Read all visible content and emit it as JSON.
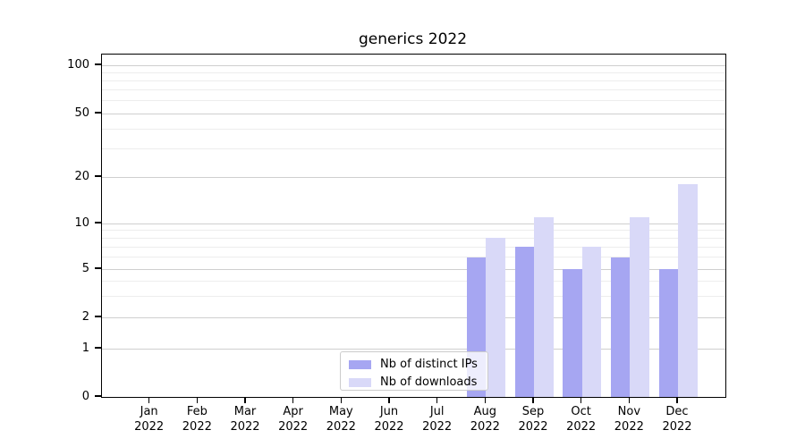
{
  "title": "generics 2022",
  "chart_data": {
    "type": "bar",
    "title": "generics 2022",
    "xlabel": "",
    "ylabel": "",
    "yscale": "symlog",
    "grid": true,
    "legend_position": "lower center inside plot",
    "ytick_labels": [
      "0",
      "1",
      "2",
      "5",
      "10",
      "20",
      "50",
      "100"
    ],
    "ytick_values": [
      0,
      1,
      2,
      5,
      10,
      20,
      50,
      100
    ],
    "y_minor_gridline_values": [
      3,
      4,
      6,
      7,
      8,
      9,
      30,
      40,
      60,
      70,
      80,
      90
    ],
    "ylim": [
      0,
      110
    ],
    "categories": [
      {
        "month": "Jan",
        "year": "2022"
      },
      {
        "month": "Feb",
        "year": "2022"
      },
      {
        "month": "Mar",
        "year": "2022"
      },
      {
        "month": "Apr",
        "year": "2022"
      },
      {
        "month": "May",
        "year": "2022"
      },
      {
        "month": "Jun",
        "year": "2022"
      },
      {
        "month": "Jul",
        "year": "2022"
      },
      {
        "month": "Aug",
        "year": "2022"
      },
      {
        "month": "Sep",
        "year": "2022"
      },
      {
        "month": "Oct",
        "year": "2022"
      },
      {
        "month": "Nov",
        "year": "2022"
      },
      {
        "month": "Dec",
        "year": "2022"
      }
    ],
    "series": [
      {
        "name": "Nb of distinct IPs",
        "color": "#a6a6f2",
        "values": [
          0,
          0,
          0,
          0,
          0,
          0,
          0,
          6,
          7,
          5,
          6,
          5
        ]
      },
      {
        "name": "Nb of downloads",
        "color": "#d9d9f8",
        "values": [
          0,
          0,
          0,
          0,
          0,
          0,
          0,
          8,
          11,
          7,
          11,
          18
        ]
      }
    ]
  },
  "colors": {
    "grid_major": "#cfcfcf",
    "grid_minor": "#ededed",
    "axis": "#000000",
    "legend_border": "#cccccc"
  }
}
